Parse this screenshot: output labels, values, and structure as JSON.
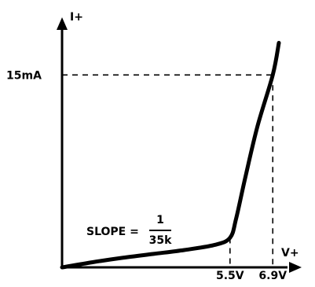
{
  "chart_data": {
    "type": "line",
    "y_axis_label": "I+",
    "x_axis_label": "V+",
    "y_marker_label": "15mA",
    "x_marker_labels": [
      "5.5V",
      "6.9V"
    ],
    "slope_annotation": {
      "prefix": "SLOPE =",
      "numerator": "1",
      "denominator": "35k"
    },
    "series": [
      {
        "points": [
          {
            "v": 0.0,
            "i": 0.0
          },
          {
            "v": 1.0,
            "i": 0.4
          },
          {
            "v": 2.0,
            "i": 0.75
          },
          {
            "v": 3.0,
            "i": 1.05
          },
          {
            "v": 4.0,
            "i": 1.35
          },
          {
            "v": 5.0,
            "i": 1.75
          },
          {
            "v": 5.5,
            "i": 2.3
          },
          {
            "v": 5.7,
            "i": 3.8
          },
          {
            "v": 6.0,
            "i": 7.0
          },
          {
            "v": 6.4,
            "i": 11.0
          },
          {
            "v": 6.9,
            "i": 15.0
          },
          {
            "v": 7.1,
            "i": 17.5
          }
        ]
      }
    ],
    "x_marker_values": [
      5.5,
      6.9
    ],
    "y_marker_value": 15.0,
    "xlim": [
      0,
      8.0
    ],
    "ylim": [
      0,
      19.0
    ],
    "grid": false
  }
}
